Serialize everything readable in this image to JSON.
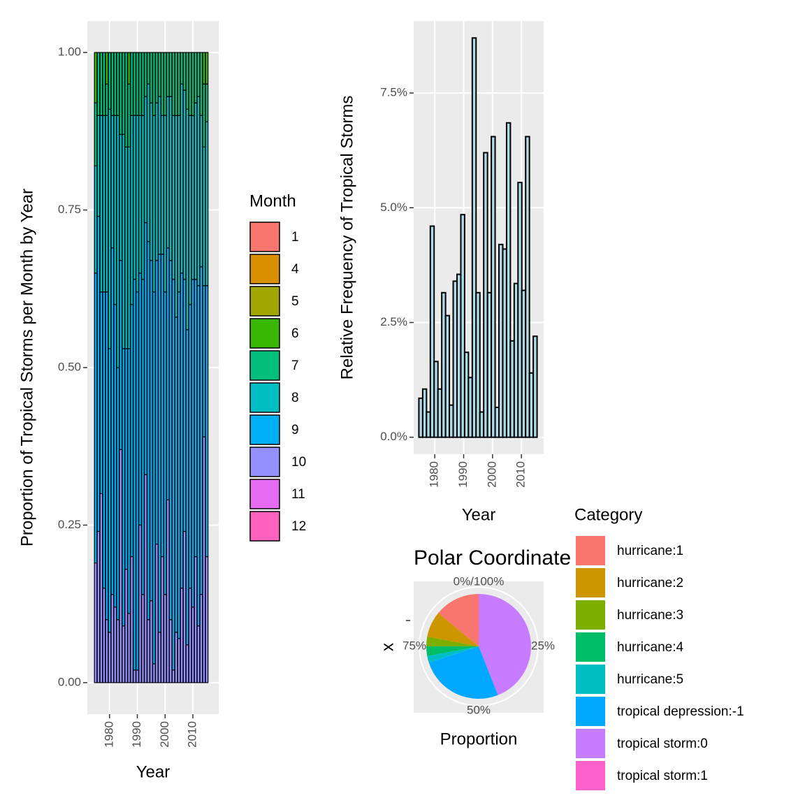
{
  "chart_data": [
    {
      "type": "stacked_bar",
      "x_label": "Year",
      "y_label": "Proportion of Tropical Storms per Month by Year",
      "legend_title": "Month",
      "x": [
        1975,
        1976,
        1977,
        1978,
        1979,
        1980,
        1981,
        1982,
        1983,
        1984,
        1985,
        1986,
        1987,
        1988,
        1989,
        1990,
        1991,
        1992,
        1993,
        1994,
        1995,
        1996,
        1997,
        1998,
        1999,
        2000,
        2001,
        2002,
        2003,
        2004,
        2005,
        2006,
        2007,
        2008,
        2009,
        2010,
        2011,
        2012,
        2013,
        2014,
        2015
      ],
      "series": [
        {
          "name": "1",
          "color": "#F8766D",
          "values": [
            0,
            0,
            0,
            0,
            0,
            0,
            0,
            0,
            0,
            0,
            0,
            0,
            0,
            0,
            0,
            0,
            0,
            0,
            0,
            0,
            0,
            0,
            0,
            0,
            0,
            0,
            0,
            0,
            0,
            0,
            0,
            0,
            0,
            0,
            0,
            0,
            0,
            0,
            0,
            0,
            0
          ]
        },
        {
          "name": "4",
          "color": "#D89000",
          "values": [
            0,
            0,
            0,
            0,
            0,
            0,
            0,
            0,
            0,
            0,
            0,
            0,
            0,
            0,
            0,
            0,
            0,
            0,
            0,
            0,
            0,
            0,
            0,
            0,
            0,
            0,
            0,
            0,
            0,
            0,
            0,
            0,
            0,
            0,
            0,
            0,
            0,
            0,
            0,
            0,
            0
          ]
        },
        {
          "name": "5",
          "color": "#A3A500",
          "values": [
            0,
            0,
            0,
            0,
            0,
            0,
            0,
            0,
            0,
            0,
            0,
            0,
            0,
            0,
            0,
            0,
            0,
            0,
            0,
            0,
            0,
            0,
            0,
            0,
            0,
            0,
            0,
            0,
            0,
            0,
            0,
            0,
            0,
            0,
            0,
            0,
            0,
            0,
            0,
            0,
            0
          ]
        },
        {
          "name": "6",
          "color": "#39B600",
          "values": [
            0.08,
            0,
            0,
            0,
            0.05,
            0,
            0,
            0,
            0,
            0,
            0,
            0,
            0.05,
            0,
            0,
            0,
            0,
            0,
            0,
            0,
            0,
            0,
            0,
            0,
            0,
            0,
            0,
            0,
            0,
            0,
            0,
            0,
            0,
            0,
            0,
            0,
            0,
            0,
            0,
            0.05,
            0.05
          ]
        },
        {
          "name": "7",
          "color": "#00BF7D",
          "values": [
            0.1,
            0.1,
            0.1,
            0.1,
            0.05,
            0.09,
            0.1,
            0.1,
            0.1,
            0.13,
            0.13,
            0.15,
            0.1,
            0.1,
            0.1,
            0.1,
            0.1,
            0.1,
            0.07,
            0.05,
            0.08,
            0.1,
            0.08,
            0.07,
            0.1,
            0.1,
            0.07,
            0.07,
            0.1,
            0.1,
            0.1,
            0.05,
            0.06,
            0.09,
            0.1,
            0.1,
            0.08,
            0.07,
            0.1,
            0.1,
            0.06
          ]
        },
        {
          "name": "8",
          "color": "#00BFC4",
          "values": [
            0.17,
            0.16,
            0.28,
            0.28,
            0.28,
            0.38,
            0.21,
            0.3,
            0.4,
            0.2,
            0.34,
            0.32,
            0.32,
            0.3,
            0.26,
            0.28,
            0.25,
            0.26,
            0.2,
            0.25,
            0.25,
            0.28,
            0.25,
            0.25,
            0.22,
            0.28,
            0.24,
            0.26,
            0.26,
            0.32,
            0.28,
            0.3,
            0.3,
            0.35,
            0.3,
            0.26,
            0.28,
            0.3,
            0.24,
            0.22,
            0.26
          ]
        },
        {
          "name": "9",
          "color": "#00B0F6",
          "values": [
            0.46,
            0.5,
            0.32,
            0.47,
            0.52,
            0.45,
            0.55,
            0.48,
            0.4,
            0.3,
            0.44,
            0.35,
            0.42,
            0.4,
            0.62,
            0.6,
            0.4,
            0.5,
            0.4,
            0.6,
            0.54,
            0.59,
            0.45,
            0.6,
            0.48,
            0.48,
            0.4,
            0.57,
            0.62,
            0.5,
            0.55,
            0.5,
            0.4,
            0.5,
            0.45,
            0.52,
            0.44,
            0.54,
            0.52,
            0.24,
            0.43
          ]
        },
        {
          "name": "10",
          "color": "#9590FF",
          "values": [
            0.19,
            0.24,
            0.3,
            0.15,
            0.1,
            0.08,
            0.14,
            0.12,
            0.1,
            0.37,
            0.09,
            0.18,
            0.11,
            0.2,
            0.02,
            0.02,
            0.25,
            0.14,
            0.33,
            0.1,
            0.13,
            0.03,
            0.22,
            0.08,
            0.2,
            0.14,
            0.29,
            0.1,
            0.02,
            0.08,
            0.07,
            0.15,
            0.24,
            0.06,
            0.15,
            0.12,
            0.2,
            0.09,
            0.14,
            0.39,
            0.2
          ]
        },
        {
          "name": "11",
          "color": "#E76BF3",
          "values": [
            0,
            0,
            0,
            0,
            0,
            0,
            0,
            0,
            0,
            0,
            0,
            0,
            0,
            0,
            0,
            0,
            0,
            0,
            0,
            0,
            0,
            0,
            0,
            0,
            0,
            0,
            0,
            0,
            0,
            0,
            0,
            0,
            0,
            0,
            0,
            0,
            0,
            0,
            0,
            0,
            0
          ]
        },
        {
          "name": "12",
          "color": "#FF62BC",
          "values": [
            0,
            0,
            0,
            0,
            0,
            0,
            0,
            0,
            0,
            0,
            0,
            0,
            0,
            0,
            0,
            0,
            0,
            0,
            0,
            0,
            0,
            0,
            0,
            0,
            0,
            0,
            0,
            0,
            0,
            0,
            0,
            0,
            0,
            0,
            0,
            0,
            0,
            0,
            0,
            0,
            0
          ]
        }
      ],
      "xlim": [
        1972.0,
        2019.3
      ],
      "xticks": [
        1980,
        1990,
        2000,
        2010
      ],
      "ylim": [
        -0.05,
        1.05
      ],
      "yticks": [
        {
          "value": 0,
          "label": "0.00"
        },
        {
          "value": 0.25,
          "label": "0.25"
        },
        {
          "value": 0.5,
          "label": "0.50"
        },
        {
          "value": 0.75,
          "label": "0.75"
        },
        {
          "value": 1,
          "label": "1.00"
        }
      ],
      "grid": true
    },
    {
      "type": "histogram",
      "x_label": "Year",
      "y_label": "Relative Frequency of Tropical Storms",
      "color": "#ADD8E6",
      "bins": [
        1974.5,
        1975.82,
        1977.14,
        1978.46,
        1979.78,
        1981.1,
        1982.42,
        1983.74,
        1985.06,
        1986.38,
        1987.7,
        1989.02,
        1990.34,
        1991.66,
        1992.98,
        1994.3,
        1995.62,
        1996.94,
        1998.26,
        1999.58,
        2000.9,
        2002.22,
        2003.54,
        2004.86,
        2006.18,
        2007.5,
        2008.82,
        2010.14,
        2011.46,
        2012.78,
        2014.1,
        2015.42
      ],
      "values": [
        0.85,
        1.05,
        0.55,
        4.6,
        1.65,
        1.05,
        3.15,
        2.65,
        0.7,
        3.4,
        3.55,
        4.85,
        1.85,
        1.3,
        8.7,
        3.15,
        0.55,
        6.2,
        3.15,
        6.55,
        0.65,
        4.2,
        4.1,
        6.85,
        2.1,
        3.35,
        5.55,
        3.2,
        6.55,
        1.4,
        2.2
      ],
      "xlim": [
        1972.7,
        2017.7
      ],
      "xticks": [
        1980,
        1990,
        2000,
        2010
      ],
      "ylim": [
        -0.37,
        9.07
      ],
      "yticks": [
        {
          "value": 0,
          "label": "0.0%"
        },
        {
          "value": 2.5,
          "label": "2.5%"
        },
        {
          "value": 5,
          "label": "5.0%"
        },
        {
          "value": 7.5,
          "label": "7.5%"
        }
      ],
      "grid": true
    },
    {
      "type": "pie",
      "title": "Polar Coordinate",
      "x_label": "Proportion",
      "y_label": "x",
      "legend_title": "Category",
      "categories": [
        "hurricane:1",
        "hurricane:2",
        "hurricane:3",
        "hurricane:4",
        "hurricane:5",
        "tropical depression:-1",
        "tropical storm:0",
        "tropical storm:1"
      ],
      "colors": [
        "#F8766D",
        "#CD9600",
        "#7CAE00",
        "#00BE67",
        "#00BFC4",
        "#00A9FF",
        "#C77CFF",
        "#FF61CC"
      ],
      "values": [
        14,
        8,
        3,
        3,
        2,
        26,
        44,
        0
      ],
      "ticks": [
        {
          "value": 0,
          "label": "0%/100%"
        },
        {
          "value": 25,
          "label": "25%"
        },
        {
          "value": 50,
          "label": "50%"
        },
        {
          "value": 75,
          "label": "75%"
        }
      ]
    }
  ]
}
